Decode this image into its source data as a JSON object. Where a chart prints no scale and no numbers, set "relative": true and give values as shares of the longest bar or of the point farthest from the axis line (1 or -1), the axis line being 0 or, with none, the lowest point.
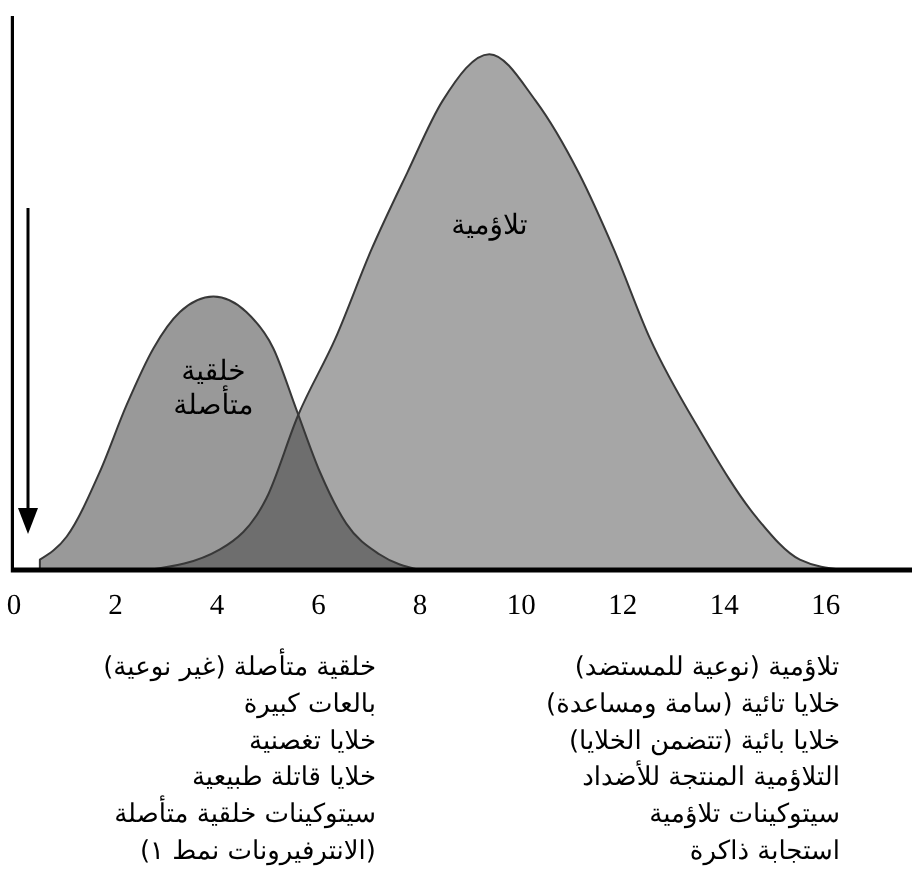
{
  "chart_data": {
    "type": "area",
    "relative": true,
    "xlim": [
      0,
      17.7
    ],
    "xticks": [
      0,
      2,
      4,
      6,
      8,
      10,
      12,
      14,
      16
    ],
    "series": [
      {
        "name": "خلقية متأصلة",
        "color": "#999999",
        "x": [
          0.51,
          1.04,
          1.69,
          2.22,
          2.75,
          3.27,
          3.93,
          4.58,
          5.11,
          5.57,
          6.03,
          6.55,
          7.21,
          8.0
        ],
        "values": [
          0.02,
          0.065,
          0.19,
          0.32,
          0.43,
          0.5,
          0.53,
          0.5,
          0.43,
          0.31,
          0.19,
          0.09,
          0.03,
          0
        ]
      },
      {
        "name": "تلاؤمية",
        "color": "#a6a6a6",
        "x": [
          2.65,
          4.06,
          4.98,
          5.6,
          6.34,
          7.04,
          7.75,
          8.45,
          9.37,
          10.28,
          11.13,
          11.83,
          12.53,
          13.52,
          14.65,
          15.49,
          16.33
        ],
        "values": [
          0,
          0.04,
          0.14,
          0.3,
          0.45,
          0.62,
          0.77,
          0.91,
          1,
          0.91,
          0.77,
          0.62,
          0.45,
          0.27,
          0.1,
          0.02,
          0
        ]
      }
    ],
    "annotations": [
      "خلقية متأصلة (غير نوعية)",
      "بالعات كبيرة",
      "خلايا تغصنية",
      "خلايا قاتلة طبيعية",
      "سيتوكينات خلقية متأصلة",
      "(الانترفيرونات نمط ١)",
      "تلاؤمية (نوعية للمستضد)",
      "خلايا تائية (سامة ومساعدة)",
      "خلايا بائية (تتضمن الخلايا)",
      "التلاؤمية المنتجة للأضداد",
      "سيتوكينات تلاؤمية",
      "استجابة ذاكرة"
    ]
  }
}
